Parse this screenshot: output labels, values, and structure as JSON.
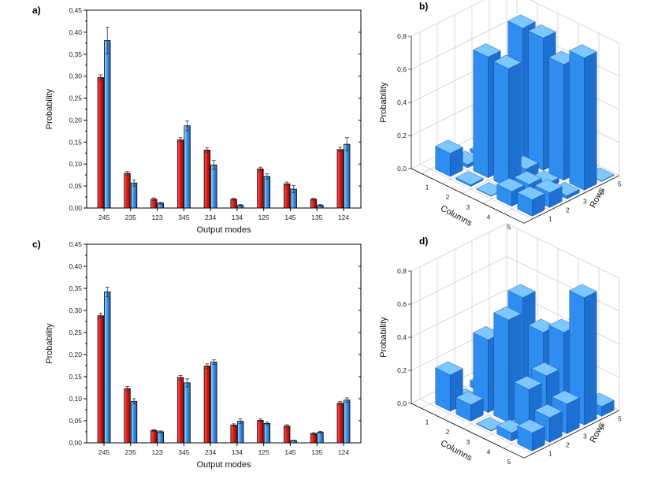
{
  "colors": {
    "red_top": "#ff5a5a",
    "red_mid": "#e11a1a",
    "red_dark": "#8a0a0a",
    "blue_top": "#a9dcff",
    "blue_mid": "#3e97ee",
    "blue_dark": "#1d5fae",
    "bar3d_top": "#7cc7ff",
    "bar3d_front": "#2f8df0",
    "bar3d_side": "#1d6fd0",
    "grid3d": "#bfbfbf",
    "axis": "#000000"
  },
  "chart_data": [
    {
      "id": "a",
      "panel_label": "a)",
      "type": "bar",
      "xlabel": "Output modes",
      "ylabel": "Probability",
      "ylim": [
        0,
        0.45
      ],
      "yticks": [
        "0,00",
        "0,05",
        "0,10",
        "0,15",
        "0,20",
        "0,25",
        "0,30",
        "0,35",
        "0,40",
        "0,45"
      ],
      "categories": [
        "245",
        "235",
        "123",
        "345",
        "234",
        "134",
        "125",
        "145",
        "135",
        "124"
      ],
      "series": [
        {
          "name": "red",
          "values": [
            0.297,
            0.079,
            0.02,
            0.155,
            0.132,
            0.02,
            0.089,
            0.055,
            0.02,
            0.133
          ],
          "errors": [
            0.006,
            0.004,
            0.003,
            0.005,
            0.005,
            0.002,
            0.004,
            0.004,
            0.002,
            0.005
          ]
        },
        {
          "name": "blue",
          "values": [
            0.381,
            0.057,
            0.011,
            0.187,
            0.098,
            0.006,
            0.072,
            0.043,
            0.006,
            0.145
          ],
          "errors": [
            0.03,
            0.007,
            0.002,
            0.011,
            0.01,
            0.002,
            0.006,
            0.008,
            0.002,
            0.015
          ]
        }
      ]
    },
    {
      "id": "c",
      "panel_label": "c)",
      "type": "bar",
      "xlabel": "Output modes",
      "ylabel": "Probability",
      "ylim": [
        0,
        0.45
      ],
      "yticks": [
        "0,00",
        "0,05",
        "0,10",
        "0,15",
        "0,20",
        "0,25",
        "0,30",
        "0,35",
        "0,40",
        "0,45"
      ],
      "categories": [
        "245",
        "235",
        "123",
        "345",
        "234",
        "134",
        "125",
        "145",
        "135",
        "124"
      ],
      "series": [
        {
          "name": "red",
          "values": [
            0.288,
            0.123,
            0.028,
            0.148,
            0.174,
            0.04,
            0.051,
            0.038,
            0.021,
            0.09
          ],
          "errors": [
            0.006,
            0.005,
            0.002,
            0.005,
            0.005,
            0.003,
            0.003,
            0.003,
            0.002,
            0.004
          ]
        },
        {
          "name": "blue",
          "values": [
            0.342,
            0.094,
            0.025,
            0.136,
            0.183,
            0.049,
            0.044,
            0.005,
            0.024,
            0.097
          ],
          "errors": [
            0.011,
            0.006,
            0.002,
            0.009,
            0.005,
            0.005,
            0.003,
            0.001,
            0.002,
            0.005
          ]
        }
      ]
    },
    {
      "id": "b",
      "panel_label": "b)",
      "type": "bar3d",
      "zlabel": "Probability",
      "xlabel": "Columns",
      "ylabel": "Rows",
      "zlim": [
        0,
        0.8
      ],
      "zticks": [
        "0,0",
        "0,2",
        "0,4",
        "0,6",
        "0,8"
      ],
      "column_ticks": [
        "1",
        "2",
        "3",
        "4",
        "5"
      ],
      "row_ticks": [
        "1",
        "2",
        "3",
        "4",
        "5"
      ],
      "matrix": [
        [
          0.14,
          0.02,
          0.02,
          0.01,
          0.0
        ],
        [
          0.01,
          0.73,
          0.05,
          0.8,
          0.0
        ],
        [
          0.0,
          0.72,
          0.06,
          0.8,
          0.03
        ],
        [
          0.09,
          0.08,
          0.03,
          0.7,
          0.02
        ],
        [
          0.1,
          0.09,
          0.02,
          0.8,
          0.0
        ]
      ]
    },
    {
      "id": "d",
      "panel_label": "d)",
      "type": "bar3d",
      "zlabel": "Probability",
      "xlabel": "Columns",
      "ylabel": "Rows",
      "zlim": [
        0,
        0.8
      ],
      "zticks": [
        "0,0",
        "0,2",
        "0,4",
        "0,6",
        "0,8"
      ],
      "column_ticks": [
        "1",
        "2",
        "3",
        "4",
        "5"
      ],
      "row_ticks": [
        "1",
        "2",
        "3",
        "4",
        "5"
      ],
      "matrix": [
        [
          0.22,
          0.0,
          0.04,
          0.02,
          0.0
        ],
        [
          0.1,
          0.44,
          0.2,
          0.59,
          0.09
        ],
        [
          0.0,
          0.62,
          0.08,
          0.44,
          0.01
        ],
        [
          0.05,
          0.26,
          0.29,
          0.5,
          0.09
        ],
        [
          0.11,
          0.15,
          0.18,
          0.77,
          0.06
        ]
      ]
    }
  ]
}
